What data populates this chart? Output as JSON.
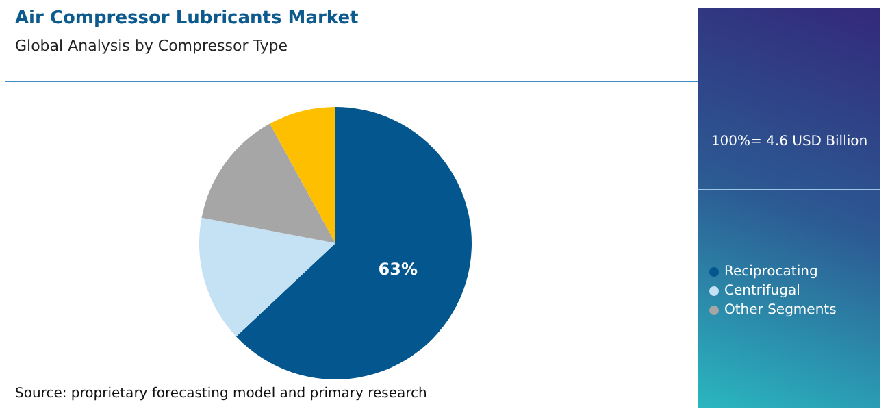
{
  "chart_data": {
    "type": "pie",
    "title": "Air Compressor Lubricants Market",
    "subtitle": "Global Analysis by Compressor Type",
    "categories": [
      "Reciprocating",
      "Centrifugal",
      "Other Segments",
      null
    ],
    "values": [
      63,
      15,
      14,
      8
    ],
    "value_labels": [
      "63%",
      null,
      null,
      null
    ],
    "colors": [
      "#04568e",
      "#c5e2f5",
      "#a6a6a6",
      "#fdbf00"
    ],
    "legend": "right",
    "annotations": [
      "100%= 4.6 USD Billion",
      "Source: proprietary forecasting model and primary research"
    ]
  }
}
